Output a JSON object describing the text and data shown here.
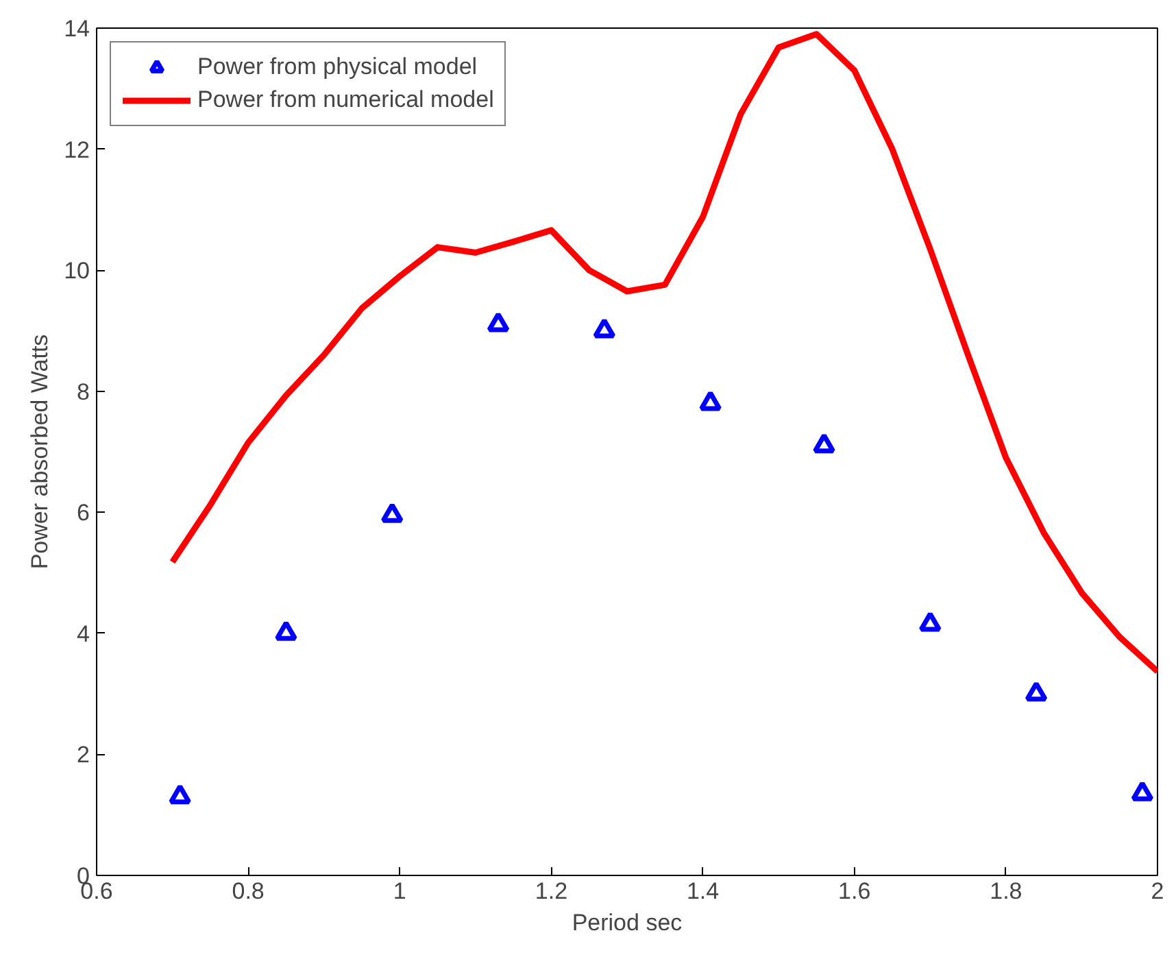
{
  "chart_data": {
    "type": "line",
    "xlabel": "Period sec",
    "ylabel": "Power absorbed Watts",
    "xlim": [
      0.6,
      2.0
    ],
    "ylim": [
      0,
      14
    ],
    "xticks": [
      0.6,
      0.8,
      1,
      1.2,
      1.4,
      1.6,
      1.8,
      2
    ],
    "yticks": [
      0,
      2,
      4,
      6,
      8,
      10,
      12,
      14
    ],
    "grid": false,
    "legend": "top left",
    "series": [
      {
        "name": "Power from physical model",
        "type": "scatter",
        "marker": "triangle",
        "color": "#0000ff",
        "x": [
          0.71,
          0.85,
          0.99,
          1.13,
          1.27,
          1.41,
          1.56,
          1.7,
          1.84,
          1.98
        ],
        "values": [
          1.3,
          4.0,
          5.95,
          9.1,
          9.0,
          7.8,
          7.1,
          4.15,
          3.0,
          1.35
        ]
      },
      {
        "name": "Power from numerical model",
        "line_style": "solid",
        "color": "#ff0000",
        "x": [
          0.7,
          0.75,
          0.8,
          0.85,
          0.9,
          0.95,
          1.0,
          1.05,
          1.1,
          1.15,
          1.2,
          1.25,
          1.3,
          1.35,
          1.4,
          1.45,
          1.5,
          1.55,
          1.6,
          1.65,
          1.7,
          1.75,
          1.8,
          1.85,
          1.9,
          1.95,
          2.0
        ],
        "values": [
          5.18,
          6.12,
          7.15,
          7.93,
          8.6,
          9.37,
          9.9,
          10.38,
          10.29,
          10.47,
          10.66,
          10.0,
          9.65,
          9.76,
          10.88,
          12.58,
          13.68,
          13.9,
          13.3,
          12.0,
          10.35,
          8.6,
          6.9,
          5.66,
          4.67,
          3.94,
          3.37
        ]
      }
    ]
  }
}
